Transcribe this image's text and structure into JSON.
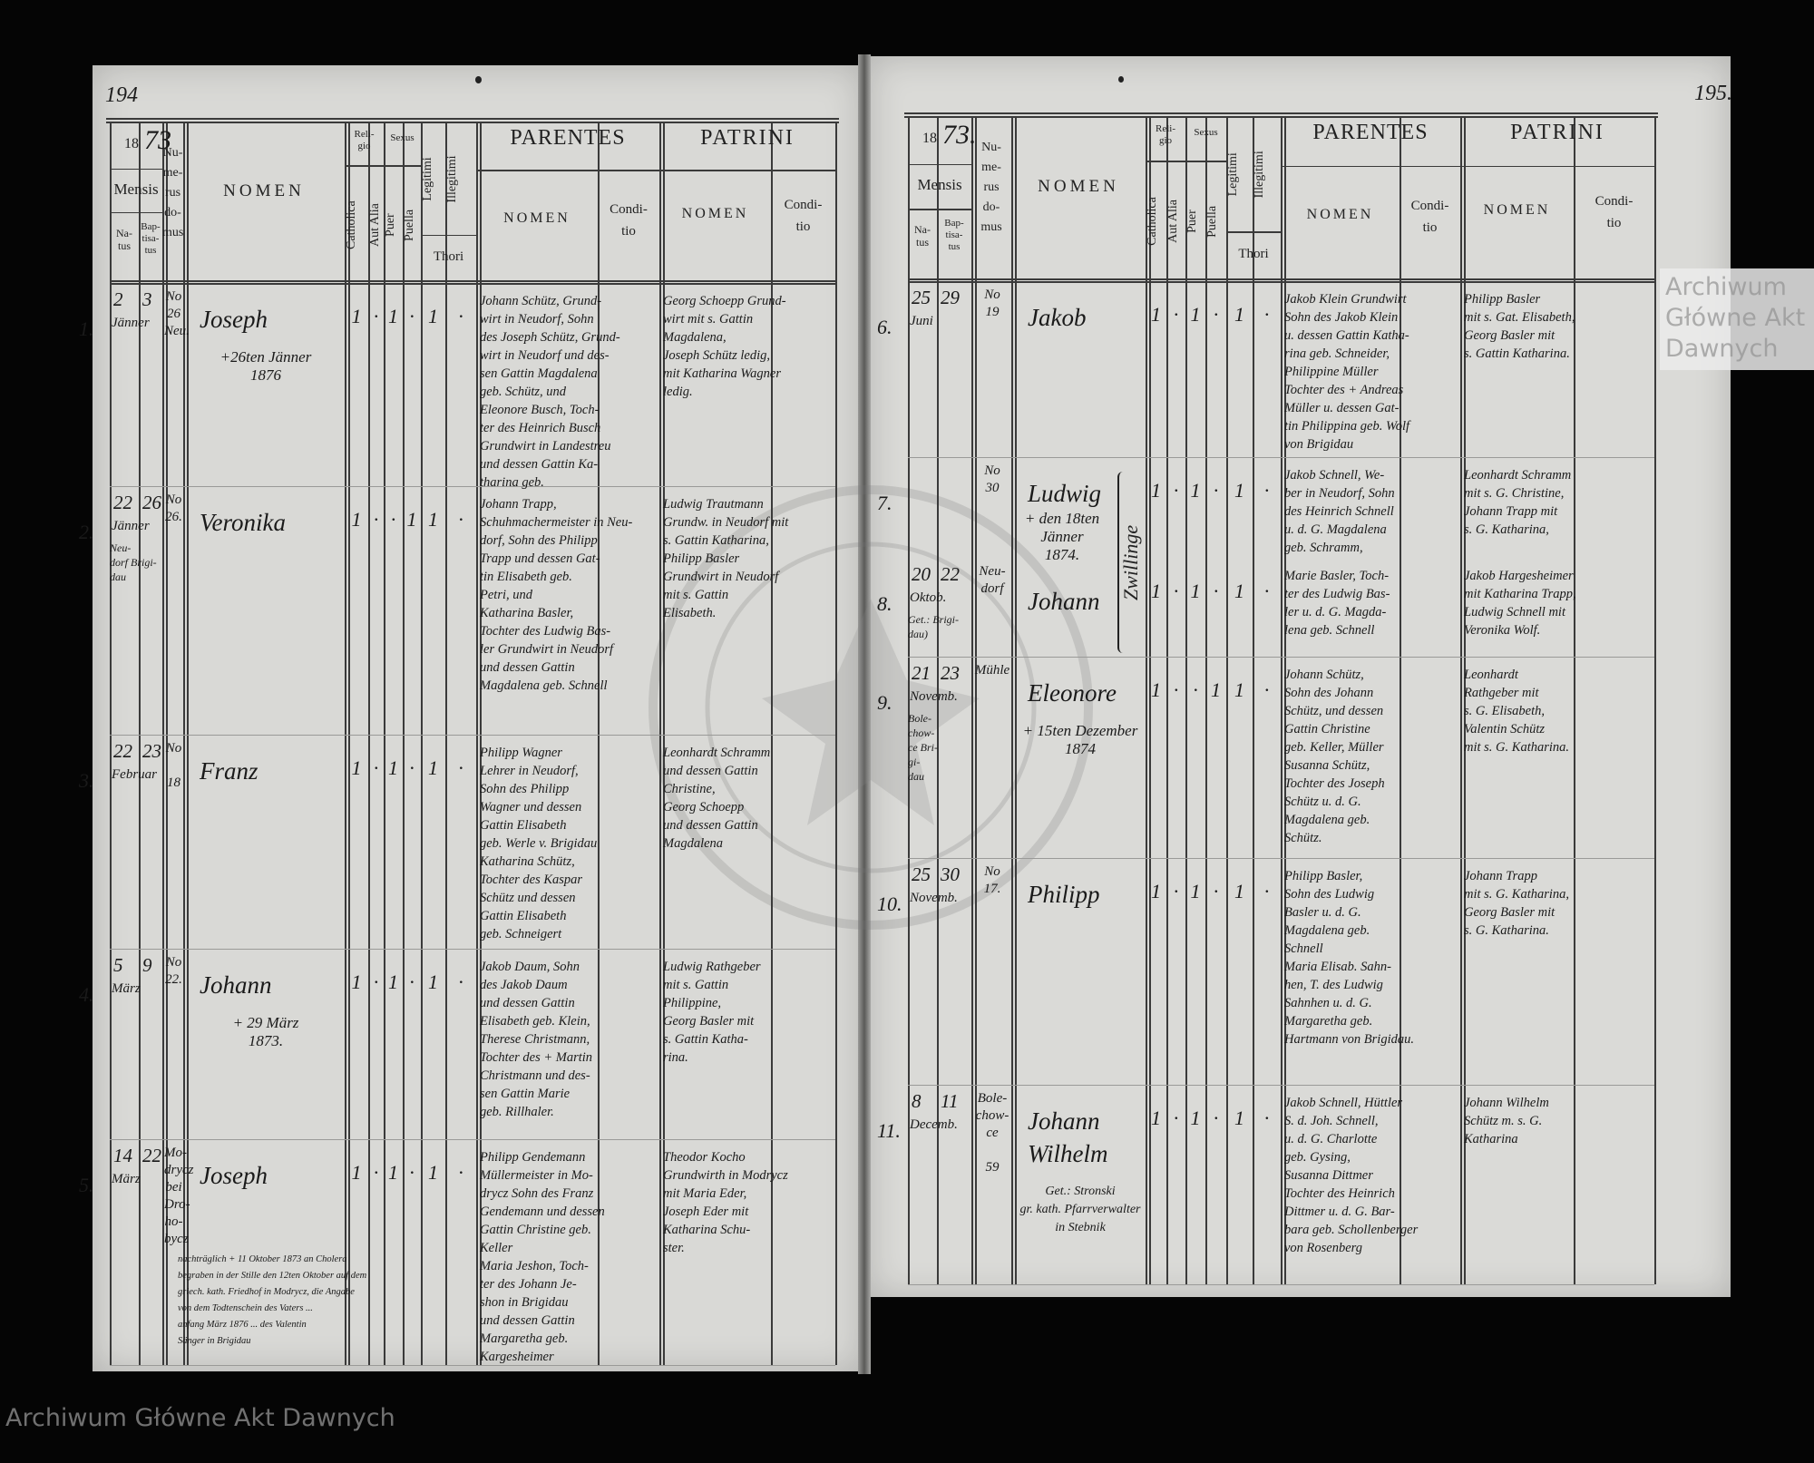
{
  "watermark": "Archiwum Główne Akt Dawnych",
  "header": {
    "year_printed": "18",
    "year_left_hand": "73",
    "year_right_hand": "73.",
    "mensis": "Mensis",
    "natus": "Na-\ntus",
    "baptisatus": "Bap-\ntisa-\ntus",
    "numerus_domus": "Nu-\nme-\nrus\ndo-\nmus",
    "nomen": "NOMEN",
    "religio": "Reli-\ngio",
    "catholica": "Catholica",
    "aut_alia": "Aut Alia",
    "sexus": "Sexus",
    "puer": "Puer",
    "puella": "Puella",
    "legitimi": "Legitimi",
    "illegitimi": "Illegitimi",
    "thori": "Thori",
    "parentes": "PARENTES",
    "patrini": "PATRINI",
    "sub_nomen": "NOMEN",
    "conditio": "Condi-\ntio"
  },
  "left_page": {
    "page_number": "194",
    "rows": [
      {
        "number": "1.",
        "natus": "2",
        "baptisatus": "3",
        "mensis": "Jänner",
        "locus": "",
        "domus": "No\n26\nNeu.",
        "nomen": "Joseph",
        "nota": "+26ten Jänner\n1876",
        "marks": [
          "1",
          "·",
          "1",
          "·",
          "1",
          "·"
        ],
        "parentes": [
          "Johann Schütz, Grund-",
          "wirt in Neudorf, Sohn",
          "des Joseph Schütz, Grund-",
          "wirt in Neudorf und des-",
          "sen Gattin Magdalena",
          "geb. Schütz, und",
          "Eleonore Busch, Toch-",
          "ter des Heinrich Busch",
          "Grundwirt in Landestreu",
          "und dessen Gattin Ka-",
          "tharina geb."
        ],
        "patrini": [
          "Georg Schoepp Grund-",
          "wirt mit s. Gattin",
          "Magdalena,",
          "Joseph Schütz ledig,",
          "mit Katharina Wagner",
          "ledig."
        ]
      },
      {
        "number": "2.",
        "natus": "22",
        "baptisatus": "26",
        "mensis": "Jänner",
        "locus": "Neu-\ndorf   Brigi-\n          dau",
        "domus": "No\n26.",
        "nomen": "Veronika",
        "nota": "",
        "marks": [
          "1",
          "·",
          "·",
          "1",
          "1",
          "·"
        ],
        "parentes": [
          "Johann Trapp,",
          "Schuhmachermeister in Neu-",
          "dorf, Sohn des Philipp",
          "Trapp und dessen Gat-",
          "tin Elisabeth geb.",
          "Petri, und",
          "Katharina Basler,",
          "Tochter des Ludwig Bas-",
          "ler Grundwirt in Neudorf",
          "und dessen Gattin",
          "Magdalena geb. Schnell"
        ],
        "patrini": [
          "Ludwig Trautmann",
          "Grundw. in Neudorf mit",
          "s. Gattin Katharina,",
          "Philipp Basler",
          "Grundwirt in Neudorf",
          "mit s. Gattin",
          "Elisabeth."
        ]
      },
      {
        "number": "3.",
        "natus": "22",
        "baptisatus": "23",
        "mensis": "Februar",
        "locus": "",
        "domus": "No\n\n18",
        "nomen": "Franz",
        "nota": "",
        "marks": [
          "1",
          "·",
          "1",
          "·",
          "1",
          "·"
        ],
        "parentes": [
          "Philipp Wagner",
          "Lehrer in Neudorf,",
          "Sohn des Philipp",
          "Wagner und dessen",
          "Gattin Elisabeth",
          "geb. Werle v. Brigidau",
          "Katharina Schütz,",
          "Tochter des Kaspar",
          "Schütz und dessen",
          "Gattin Elisabeth",
          "geb. Schneigert"
        ],
        "patrini": [
          "Leonhardt Schramm",
          "und dessen Gattin",
          "Christine,",
          "Georg Schoepp",
          "und dessen Gattin",
          "Magdalena"
        ]
      },
      {
        "number": "4.",
        "natus": "5",
        "baptisatus": "9",
        "mensis": "März",
        "locus": "",
        "domus": "No\n22.",
        "nomen": "Johann",
        "nota": "+ 29 März\n1873.",
        "marks": [
          "1",
          "·",
          "1",
          "·",
          "1",
          "·"
        ],
        "parentes": [
          "Jakob Daum, Sohn",
          "des Jakob Daum",
          "und dessen Gattin",
          "Elisabeth geb. Klein,",
          "Therese Christmann,",
          "Tochter des + Martin",
          "Christmann und des-",
          "sen Gattin Marie",
          "geb. Rillhaler."
        ],
        "patrini": [
          "Ludwig Rathgeber",
          "mit s. Gattin",
          "Philippine,",
          "Georg Basler mit",
          "s. Gattin Katha-",
          "rina."
        ]
      },
      {
        "number": "5.",
        "natus": "14",
        "baptisatus": "22",
        "mensis": "März",
        "locus": "",
        "domus": "Mo-\ndrycz\nbei\nDro-\nho-\nbycz",
        "nomen": "Joseph",
        "nota": "",
        "marks": [
          "1",
          "·",
          "1",
          "·",
          "1",
          "·"
        ],
        "nota_lang": [
          "nachträglich + 11 Oktober 1873 an Cholera",
          "begraben in der Stille den 12ten Oktober auf dem",
          "griech. kath. Friedhof in Modrycz, die Angabe",
          "von dem Todtenschein des Vaters ... ",
          "anfang März 1876 ... des Valentin",
          "Sänger in Brigidau"
        ],
        "parentes": [
          "Philipp Gendemann",
          "Müllermeister in Mo-",
          "drycz Sohn des Franz",
          "Gendemann und dessen",
          "Gattin Christine geb.",
          "Keller",
          "Maria Jeshon, Toch-",
          "ter des Johann Je-",
          "shon in Brigidau",
          "und dessen Gattin",
          "Margaretha geb.",
          "Kargesheimer"
        ],
        "patrini": [
          "Theodor Kocho",
          "Grundwirth in Modrycz",
          "mit Maria Eder,",
          "Joseph Eder mit",
          "Katharina Schu-",
          "ster."
        ]
      }
    ]
  },
  "right_page": {
    "page_number": "195.",
    "gemini_nota": "Zwillinge",
    "rows": [
      {
        "number": "6.",
        "natus": "25",
        "baptisatus": "29",
        "mensis": "Juni",
        "locus": "",
        "domus": "No\n19",
        "nomen": "Jakob",
        "nota": "",
        "marks": [
          "1",
          "·",
          "1",
          "·",
          "1",
          "·"
        ],
        "parentes": [
          "Jakob Klein Grundwirt",
          "Sohn des Jakob Klein",
          "u. dessen Gattin Katha-",
          "rina geb. Schneider,",
          "Philippine Müller",
          "Tochter des + Andreas",
          "Müller u. dessen Gat-",
          "tin Philippina geb. Wolf",
          "           von Brigidau"
        ],
        "patrini": [
          "Philipp Basler",
          "mit s. Gat. Elisabeth,",
          "Georg Basler mit",
          "s. Gattin Katharina."
        ]
      },
      {
        "number": "7.",
        "natus": "",
        "baptisatus": "",
        "mensis": "",
        "locus": "",
        "domus": "No\n30",
        "nomen": "Ludwig",
        "nota": "+ den 18ten\nJänner\n1874.",
        "marks": [
          "1",
          "·",
          "1",
          "·",
          "1",
          "·"
        ],
        "parentes": [
          "Jakob Schnell, We-",
          "ber in Neudorf, Sohn",
          "des Heinrich Schnell",
          "u. d. G. Magdalena",
          "geb. Schramm,"
        ],
        "patrini": [
          "Leonhardt Schramm",
          "mit s. G. Christine,",
          "Johann Trapp mit",
          "s. G. Katharina,"
        ]
      },
      {
        "number": "8.",
        "natus": "20",
        "baptisatus": "22",
        "mensis": "Oktob.",
        "locus": "Get.: Brigi-\n        dau)",
        "domus": "Neu-\ndorf",
        "nomen": "Johann",
        "nota": "",
        "marks": [
          "1",
          "·",
          "1",
          "·",
          "1",
          "·"
        ],
        "parentes": [
          "Marie Basler, Toch-",
          "ter des Ludwig Bas-",
          "ler u. d. G. Magda-",
          "lena geb. Schnell"
        ],
        "patrini": [
          "Jakob Hargesheimer",
          "mit Katharina Trapp,",
          "Ludwig Schnell mit",
          "Veronika Wolf."
        ]
      },
      {
        "number": "9.",
        "natus": "21",
        "baptisatus": "23",
        "mensis": "Novemb.",
        "locus": "Bole-\nchow-\nce    Bri-\n       gi-\n       dau",
        "domus": "Mühle",
        "nomen": "Eleonore",
        "nota": "+ 15ten Dezember\n1874",
        "marks": [
          "1",
          "·",
          "·",
          "1",
          "1",
          "·"
        ],
        "parentes": [
          "Johann Schütz,",
          "Sohn des Johann",
          "Schütz, und dessen",
          "Gattin Christine",
          "geb. Keller, Müller",
          "Susanna Schütz,",
          "Tochter des Joseph",
          "Schütz u. d. G.",
          "Magdalena geb.",
          "Schütz."
        ],
        "patrini": [
          "Leonhardt",
          "Rathgeber mit",
          "s. G. Elisabeth,",
          "Valentin Schütz",
          "mit s. G. Katharina."
        ]
      },
      {
        "number": "10.",
        "natus": "25",
        "baptisatus": "30",
        "mensis": "Novemb.",
        "locus": "",
        "domus": "No\n17.",
        "nomen": "Philipp",
        "nota": "",
        "marks": [
          "1",
          "·",
          "1",
          "·",
          "1",
          "·"
        ],
        "parentes": [
          "Philipp Basler,",
          "Sohn des Ludwig",
          "Basler u. d. G.",
          "Magdalena geb.",
          "Schnell",
          "Maria Elisab. Sahn-",
          "hen, T. des Ludwig",
          "Sahnhen u. d. G.",
          "Margaretha geb.",
          "Hartmann von Brigidau."
        ],
        "patrini": [
          "Johann Trapp",
          "mit s. G. Katharina,",
          "",
          "Georg Basler mit",
          "s. G. Katharina."
        ]
      },
      {
        "number": "11.",
        "natus": "8",
        "baptisatus": "11",
        "mensis": "Decemb.",
        "locus": "",
        "domus": "Bole-\nchow-\nce\n\n59",
        "nomen": "Johann\nWilhelm",
        "nota": "Get.: Stronski\ngr. kath. Pfarrverwalter\nin Stebnik",
        "marks": [
          "1",
          "·",
          "1",
          "·",
          "1",
          "·"
        ],
        "parentes": [
          "Jakob Schnell, Hüttler",
          "S. d. Joh. Schnell,",
          "u. d. G. Charlotte",
          "geb. Gysing,",
          "Susanna Dittmer",
          "Tochter des Heinrich",
          "Dittmer u. d. G. Bar-",
          "bara geb. Schollenberger",
          "von Rosenberg"
        ],
        "patrini": [
          "Johann Wilhelm",
          "Schütz m. s. G.",
          "Katharina"
        ]
      }
    ]
  }
}
